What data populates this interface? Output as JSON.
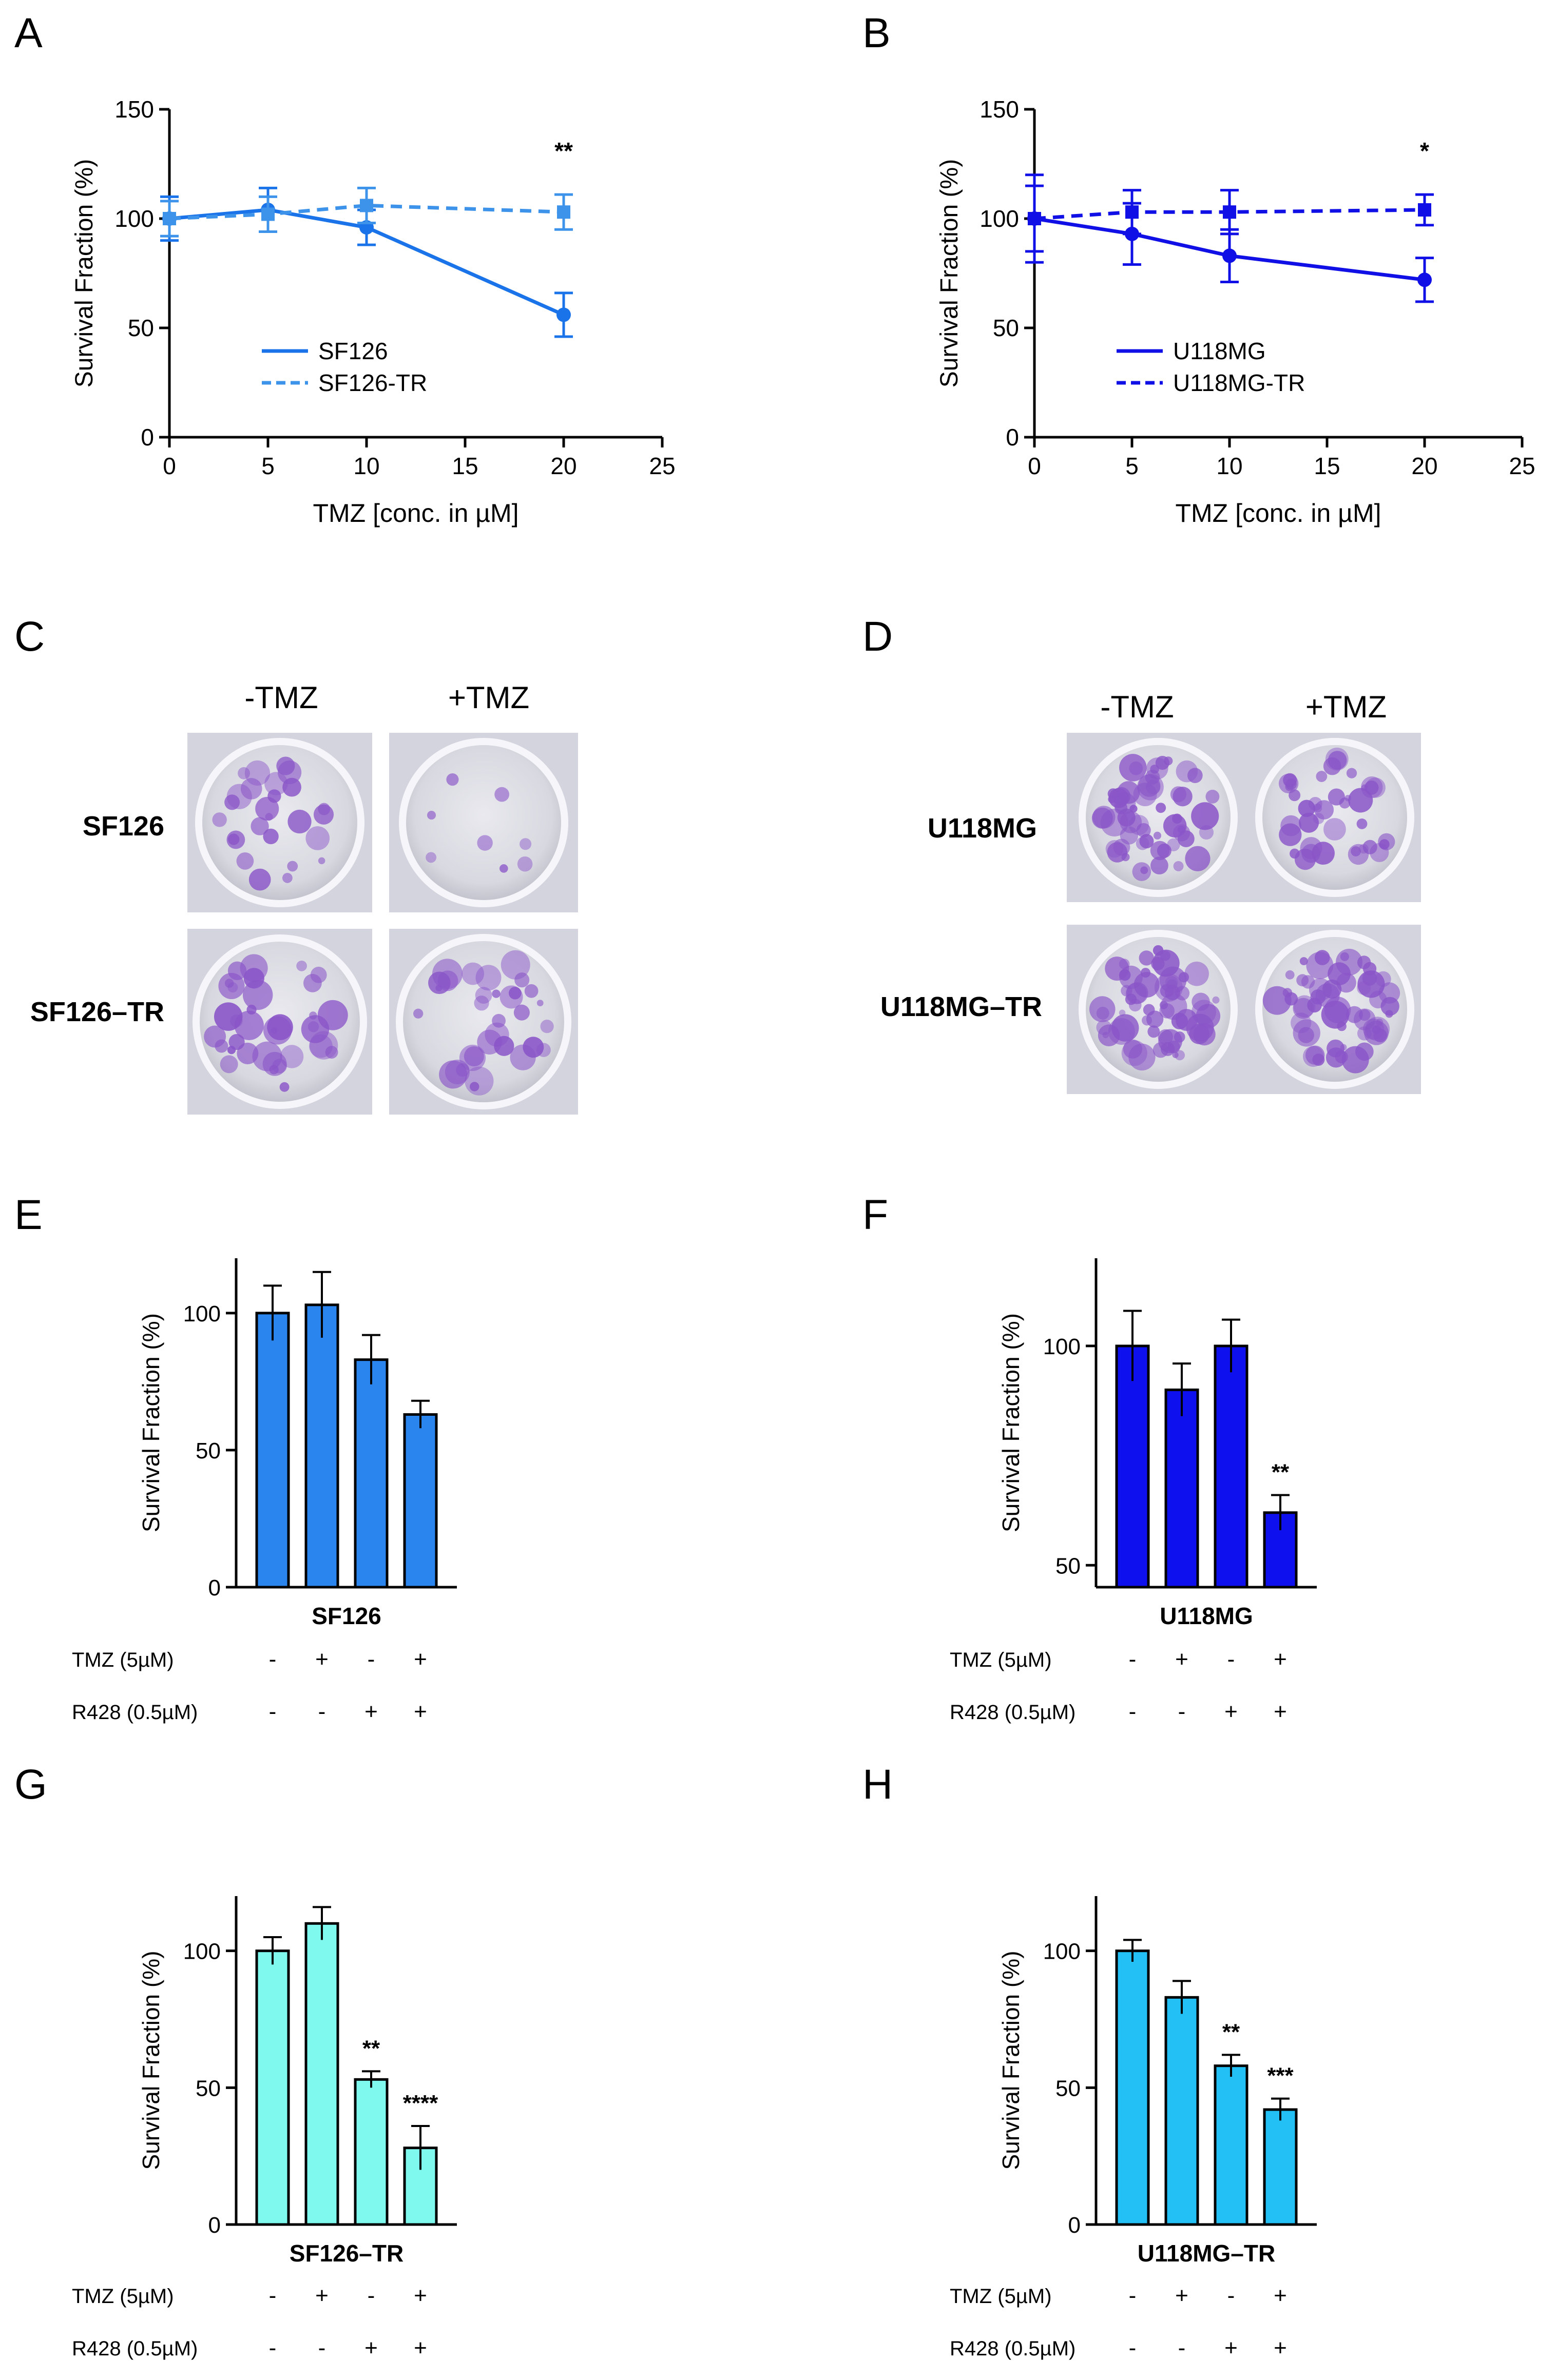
{
  "colors": {
    "sf126": "#1a73e8",
    "sf126_tr_line": "#3d93ea",
    "u118mg": "#1010e6",
    "bar_e": "#2a86ee",
    "bar_f": "#0f10ee",
    "bar_g": "#7ff8ee",
    "bar_h": "#22c0f4",
    "axis": "#000000",
    "colony": "#8a55c8"
  },
  "panels": {
    "A": {
      "letter": "A",
      "chart_data": {
        "type": "line",
        "ylabel": "Survival Fraction (%)",
        "xlabel": "TMZ [conc. in µM]",
        "xlim": [
          0,
          25
        ],
        "ylim": [
          0,
          150
        ],
        "xticks": [
          "0",
          "5",
          "10",
          "15",
          "20",
          "25"
        ],
        "yticks": [
          "0",
          "50",
          "100",
          "150"
        ],
        "x": [
          0,
          5,
          10,
          20
        ],
        "series": [
          {
            "name": "SF126",
            "values": [
              100,
              104,
              96,
              56
            ],
            "errors": [
              10,
              10,
              8,
              10
            ],
            "style": "solid",
            "marker": "circle"
          },
          {
            "name": "SF126-TR",
            "values": [
              100,
              102,
              106,
              103
            ],
            "errors": [
              8,
              8,
              8,
              8
            ],
            "style": "dashed",
            "marker": "square"
          }
        ],
        "annotations": [
          {
            "x": 20,
            "text": "**"
          }
        ]
      }
    },
    "B": {
      "letter": "B",
      "chart_data": {
        "type": "line",
        "ylabel": "Survival Fraction (%)",
        "xlabel": "TMZ [conc. in µM]",
        "xlim": [
          0,
          25
        ],
        "ylim": [
          0,
          150
        ],
        "xticks": [
          "0",
          "5",
          "10",
          "15",
          "20",
          "25"
        ],
        "yticks": [
          "0",
          "50",
          "100",
          "150"
        ],
        "x": [
          0,
          5,
          10,
          20
        ],
        "series": [
          {
            "name": "U118MG",
            "values": [
              100,
              93,
              83,
              72
            ],
            "errors": [
              20,
              14,
              12,
              10
            ],
            "style": "solid",
            "marker": "circle"
          },
          {
            "name": "U118MG-TR",
            "values": [
              100,
              103,
              103,
              104
            ],
            "errors": [
              15,
              10,
              10,
              7
            ],
            "style": "dashed",
            "marker": "square"
          }
        ],
        "annotations": [
          {
            "x": 20,
            "text": "*"
          }
        ]
      }
    },
    "C": {
      "letter": "C",
      "col_labels": [
        "-TMZ",
        "+TMZ"
      ],
      "row_labels": [
        "SF126",
        "SF126–TR"
      ]
    },
    "D": {
      "letter": "D",
      "col_labels": [
        "-TMZ",
        "+TMZ"
      ],
      "row_labels": [
        "U118MG",
        "U118MG–TR"
      ]
    },
    "E": {
      "letter": "E",
      "chart_data": {
        "type": "bar",
        "ylabel": "Survival Fraction (%)",
        "group_label": "SF126",
        "ylim": [
          0,
          120
        ],
        "yticks": [
          0,
          50,
          100
        ],
        "values": [
          100,
          103,
          83,
          63
        ],
        "errors": [
          10,
          12,
          9,
          5
        ],
        "sig": [
          "",
          "",
          "",
          ""
        ],
        "conditions": [
          {
            "label": "TMZ (5µM)",
            "signs": [
              "-",
              "+",
              "-",
              "+"
            ]
          },
          {
            "label": "R428 (0.5µM)",
            "signs": [
              "-",
              "-",
              "+",
              "+"
            ]
          }
        ]
      }
    },
    "F": {
      "letter": "F",
      "chart_data": {
        "type": "bar",
        "ylabel": "Survival Fraction (%)",
        "group_label": "U118MG",
        "ylim": [
          45,
          120
        ],
        "yticks": [
          50,
          100
        ],
        "values": [
          100,
          90,
          100,
          62
        ],
        "errors": [
          8,
          6,
          6,
          4
        ],
        "sig": [
          "",
          "",
          "",
          "**"
        ],
        "conditions": [
          {
            "label": "TMZ (5µM)",
            "signs": [
              "-",
              "+",
              "-",
              "+"
            ]
          },
          {
            "label": "R428 (0.5µM)",
            "signs": [
              "-",
              "-",
              "+",
              "+"
            ]
          }
        ]
      }
    },
    "G": {
      "letter": "G",
      "chart_data": {
        "type": "bar",
        "ylabel": "Survival Fraction (%)",
        "group_label": "SF126–TR",
        "ylim": [
          0,
          120
        ],
        "yticks": [
          0,
          50,
          100
        ],
        "values": [
          100,
          110,
          53,
          28
        ],
        "errors": [
          5,
          6,
          3,
          8
        ],
        "sig": [
          "",
          "",
          "**",
          "****"
        ],
        "conditions": [
          {
            "label": "TMZ (5µM)",
            "signs": [
              "-",
              "+",
              "-",
              "+"
            ]
          },
          {
            "label": "R428 (0.5µM)",
            "signs": [
              "-",
              "-",
              "+",
              "+"
            ]
          }
        ]
      }
    },
    "H": {
      "letter": "H",
      "chart_data": {
        "type": "bar",
        "ylabel": "Survival Fraction (%)",
        "group_label": "U118MG–TR",
        "ylim": [
          0,
          120
        ],
        "yticks": [
          0,
          50,
          100
        ],
        "values": [
          100,
          83,
          58,
          42
        ],
        "errors": [
          4,
          6,
          4,
          4
        ],
        "sig": [
          "",
          "",
          "**",
          "***"
        ],
        "conditions": [
          {
            "label": "TMZ (5µM)",
            "signs": [
              "-",
              "+",
              "-",
              "+"
            ]
          },
          {
            "label": "R428 (0.5µM)",
            "signs": [
              "-",
              "-",
              "+",
              "+"
            ]
          }
        ]
      }
    }
  }
}
